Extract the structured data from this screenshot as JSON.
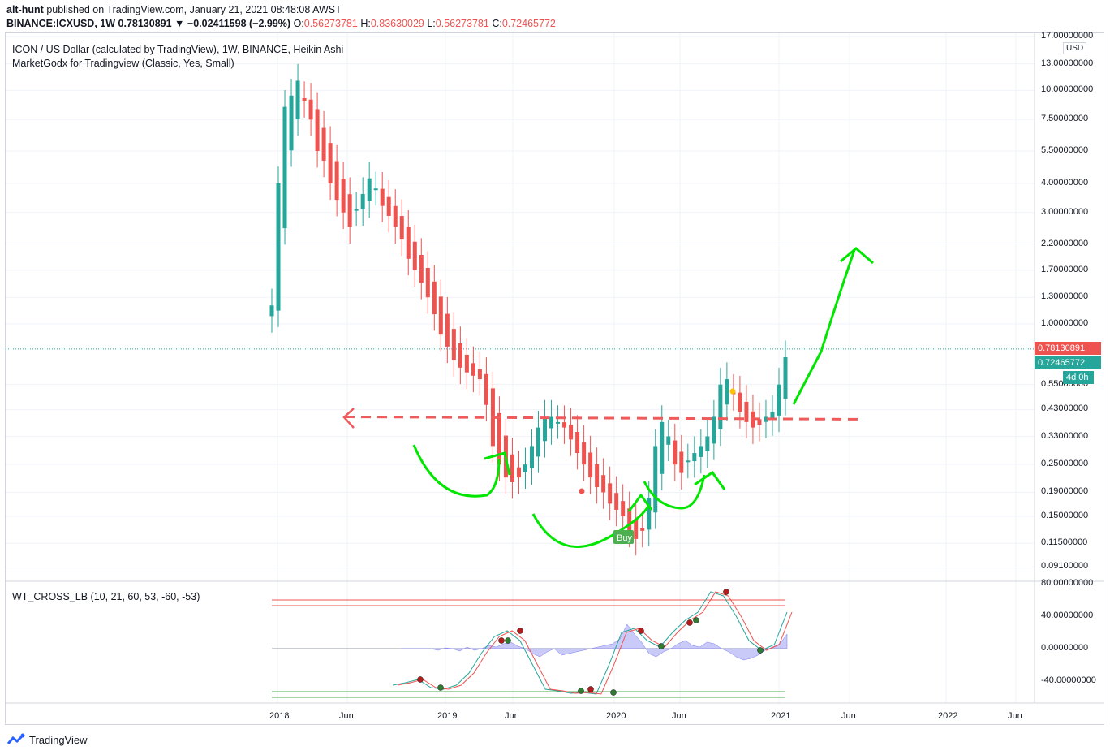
{
  "header": {
    "publisher": "alt-hunt",
    "published_text": "published on TradingView.com, January 21, 2021 08:48:08 AWST",
    "symbol": "BINANCE:ICXUSD, 1W",
    "change": "0.78130891 ▼ −0.02411598 (−2.99%)",
    "o_label": "O:",
    "o": "0.56273781",
    "h_label": "H:",
    "h": "0.83630029",
    "l_label": "L:",
    "l": "0.56273781",
    "c_label": "C:",
    "c": "0.72465772"
  },
  "legend": {
    "title": "ICON / US Dollar (calculated by TradingView), 1W, BINANCE, Heikin Ashi",
    "indicator": "MarketGodx for Tradingview (Classic, Yes, Small)",
    "oscillator": "WT_CROSS_LB (10, 21, 60, 53, -60, -53)"
  },
  "price_axis": {
    "currency": "USD",
    "labels": [
      "17.00000000",
      "13.00000000",
      "10.00000000",
      "7.50000000",
      "5.50000000",
      "4.00000000",
      "3.00000000",
      "2.20000000",
      "1.70000000",
      "1.30000000",
      "1.00000000",
      "0.55000000",
      "0.43000000",
      "0.33000000",
      "0.25000000",
      "0.19000000",
      "0.15000000",
      "0.11500000",
      "0.09100000"
    ],
    "last_price": "0.78130891",
    "close_price": "0.72465772",
    "countdown": "4d 0h"
  },
  "osc_axis": {
    "labels": [
      "80.00000000",
      "40.00000000",
      "0.00000000",
      "-40.00000000"
    ]
  },
  "time_axis": {
    "labels": [
      "2018",
      "Jun",
      "2019",
      "Jun",
      "2020",
      "Jun",
      "2021",
      "Jun",
      "2022",
      "Jun"
    ]
  },
  "signals": {
    "buy": "Buy"
  },
  "colors": {
    "up": "#26a69a",
    "down": "#ef5350",
    "draw": "#00e600",
    "dashed": "#f05a5a",
    "wave": "#7b7bf0"
  },
  "footer": {
    "brand": "TradingView"
  },
  "chart_data": {
    "type": "candlestick",
    "scale": "log",
    "x_unit": "weekly candles, Dec 2017 – Jan 2021",
    "series_close_approx": [
      1.2,
      4.0,
      8.5,
      9.5,
      11.0,
      9.0,
      7.5,
      5.5,
      5.0,
      4.0,
      3.4,
      3.0,
      2.6,
      3.1,
      3.6,
      4.2,
      3.8,
      3.2,
      2.9,
      2.6,
      2.3,
      1.9,
      1.7,
      1.5,
      1.3,
      1.1,
      0.9,
      0.8,
      0.7,
      0.65,
      0.62,
      0.6,
      0.58,
      0.45,
      0.3,
      0.25,
      0.22,
      0.21,
      0.22,
      0.25,
      0.3,
      0.36,
      0.4,
      0.4,
      0.38,
      0.36,
      0.32,
      0.28,
      0.25,
      0.22,
      0.2,
      0.19,
      0.17,
      0.16,
      0.15,
      0.13,
      0.12,
      0.13,
      0.18,
      0.3,
      0.38,
      0.33,
      0.25,
      0.23,
      0.26,
      0.28,
      0.3,
      0.33,
      0.4,
      0.55,
      0.58,
      0.5,
      0.42,
      0.38,
      0.36,
      0.37,
      0.4,
      0.42,
      0.55,
      0.72
    ],
    "support_line": 0.4,
    "oscillator": {
      "type": "line",
      "levels": [
        60,
        53,
        -60,
        -53
      ],
      "ylim": [
        -60,
        80
      ]
    }
  }
}
